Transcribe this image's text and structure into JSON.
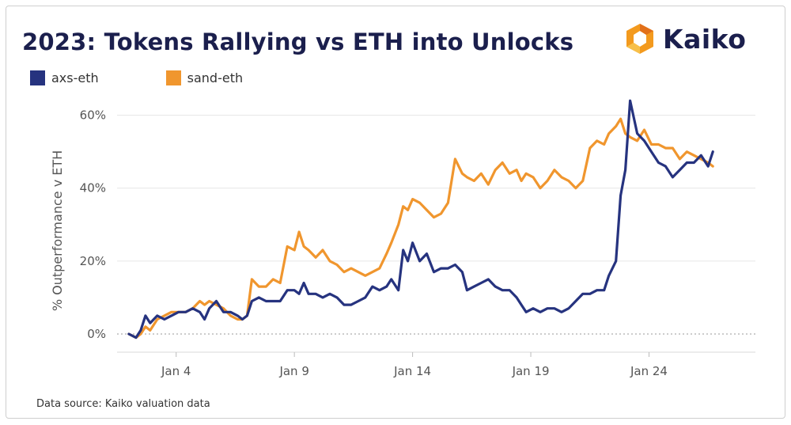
{
  "title": "2023: Tokens Rallying vs ETH into Unlocks",
  "brand": {
    "name": "Kaiko",
    "logo_icon": "kaiko-hexagon-logo"
  },
  "source_note": "Data source: Kaiko valuation data",
  "chart_data": {
    "type": "line",
    "title": "2023: Tokens Rallying vs ETH into Unlocks",
    "xlabel": "",
    "ylabel": "% Outperformance v ETH",
    "x_unit": "day of January 2023",
    "xlim": [
      1.5,
      28.5
    ],
    "ylim": [
      -5,
      66
    ],
    "y_ticks": [
      0,
      20,
      40,
      60
    ],
    "y_tick_labels": [
      "0%",
      "20%",
      "40%",
      "60%"
    ],
    "x_ticks": [
      4,
      9,
      14,
      19,
      24
    ],
    "x_tick_labels": [
      "Jan 4",
      "Jan 9",
      "Jan 14",
      "Jan 19",
      "Jan 24"
    ],
    "grid": true,
    "legend_position": "top-left",
    "series": [
      {
        "name": "axs-eth",
        "color": "#26337f",
        "points": [
          [
            2.0,
            0
          ],
          [
            2.3,
            -1
          ],
          [
            2.5,
            1
          ],
          [
            2.7,
            5
          ],
          [
            2.9,
            3
          ],
          [
            3.2,
            5
          ],
          [
            3.5,
            4
          ],
          [
            3.8,
            5
          ],
          [
            4.1,
            6
          ],
          [
            4.4,
            6
          ],
          [
            4.7,
            7
          ],
          [
            5.0,
            6
          ],
          [
            5.2,
            4
          ],
          [
            5.4,
            7
          ],
          [
            5.7,
            9
          ],
          [
            6.0,
            6
          ],
          [
            6.3,
            6
          ],
          [
            6.6,
            5
          ],
          [
            6.8,
            4
          ],
          [
            7.0,
            5
          ],
          [
            7.2,
            9
          ],
          [
            7.5,
            10
          ],
          [
            7.8,
            9
          ],
          [
            8.1,
            9
          ],
          [
            8.4,
            9
          ],
          [
            8.7,
            12
          ],
          [
            9.0,
            12
          ],
          [
            9.2,
            11
          ],
          [
            9.4,
            14
          ],
          [
            9.6,
            11
          ],
          [
            9.9,
            11
          ],
          [
            10.2,
            10
          ],
          [
            10.5,
            11
          ],
          [
            10.8,
            10
          ],
          [
            11.1,
            8
          ],
          [
            11.4,
            8
          ],
          [
            11.7,
            9
          ],
          [
            12.0,
            10
          ],
          [
            12.3,
            13
          ],
          [
            12.6,
            12
          ],
          [
            12.9,
            13
          ],
          [
            13.1,
            15
          ],
          [
            13.4,
            12
          ],
          [
            13.6,
            23
          ],
          [
            13.8,
            20
          ],
          [
            14.0,
            25
          ],
          [
            14.3,
            20
          ],
          [
            14.6,
            22
          ],
          [
            14.9,
            17
          ],
          [
            15.2,
            18
          ],
          [
            15.5,
            18
          ],
          [
            15.8,
            19
          ],
          [
            16.1,
            17
          ],
          [
            16.3,
            12
          ],
          [
            16.6,
            13
          ],
          [
            16.9,
            14
          ],
          [
            17.2,
            15
          ],
          [
            17.5,
            13
          ],
          [
            17.8,
            12
          ],
          [
            18.1,
            12
          ],
          [
            18.4,
            10
          ],
          [
            18.6,
            8
          ],
          [
            18.8,
            6
          ],
          [
            19.1,
            7
          ],
          [
            19.4,
            6
          ],
          [
            19.7,
            7
          ],
          [
            20.0,
            7
          ],
          [
            20.3,
            6
          ],
          [
            20.6,
            7
          ],
          [
            20.9,
            9
          ],
          [
            21.2,
            11
          ],
          [
            21.5,
            11
          ],
          [
            21.8,
            12
          ],
          [
            22.1,
            12
          ],
          [
            22.3,
            16
          ],
          [
            22.6,
            20
          ],
          [
            22.8,
            38
          ],
          [
            23.0,
            45
          ],
          [
            23.2,
            64
          ],
          [
            23.5,
            55
          ],
          [
            23.8,
            53
          ],
          [
            24.1,
            50
          ],
          [
            24.4,
            47
          ],
          [
            24.7,
            46
          ],
          [
            25.0,
            43
          ],
          [
            25.3,
            45
          ],
          [
            25.6,
            47
          ],
          [
            25.9,
            47
          ],
          [
            26.2,
            49
          ],
          [
            26.5,
            46
          ],
          [
            26.7,
            50
          ]
        ]
      },
      {
        "name": "sand-eth",
        "color": "#f0962e",
        "points": [
          [
            2.0,
            0
          ],
          [
            2.3,
            -1
          ],
          [
            2.5,
            0
          ],
          [
            2.7,
            2
          ],
          [
            2.9,
            1
          ],
          [
            3.2,
            4
          ],
          [
            3.5,
            5
          ],
          [
            3.8,
            6
          ],
          [
            4.1,
            6
          ],
          [
            4.4,
            6
          ],
          [
            4.7,
            7
          ],
          [
            5.0,
            9
          ],
          [
            5.2,
            8
          ],
          [
            5.4,
            9
          ],
          [
            5.7,
            8
          ],
          [
            6.0,
            7
          ],
          [
            6.3,
            5
          ],
          [
            6.6,
            4
          ],
          [
            6.8,
            4
          ],
          [
            7.0,
            5
          ],
          [
            7.2,
            15
          ],
          [
            7.5,
            13
          ],
          [
            7.8,
            13
          ],
          [
            8.1,
            15
          ],
          [
            8.4,
            14
          ],
          [
            8.7,
            24
          ],
          [
            9.0,
            23
          ],
          [
            9.2,
            28
          ],
          [
            9.4,
            24
          ],
          [
            9.6,
            23
          ],
          [
            9.9,
            21
          ],
          [
            10.2,
            23
          ],
          [
            10.5,
            20
          ],
          [
            10.8,
            19
          ],
          [
            11.1,
            17
          ],
          [
            11.4,
            18
          ],
          [
            11.7,
            17
          ],
          [
            12.0,
            16
          ],
          [
            12.3,
            17
          ],
          [
            12.6,
            18
          ],
          [
            12.9,
            22
          ],
          [
            13.1,
            25
          ],
          [
            13.4,
            30
          ],
          [
            13.6,
            35
          ],
          [
            13.8,
            34
          ],
          [
            14.0,
            37
          ],
          [
            14.3,
            36
          ],
          [
            14.6,
            34
          ],
          [
            14.9,
            32
          ],
          [
            15.2,
            33
          ],
          [
            15.5,
            36
          ],
          [
            15.8,
            48
          ],
          [
            16.1,
            44
          ],
          [
            16.3,
            43
          ],
          [
            16.6,
            42
          ],
          [
            16.9,
            44
          ],
          [
            17.2,
            41
          ],
          [
            17.5,
            45
          ],
          [
            17.8,
            47
          ],
          [
            18.1,
            44
          ],
          [
            18.4,
            45
          ],
          [
            18.6,
            42
          ],
          [
            18.8,
            44
          ],
          [
            19.1,
            43
          ],
          [
            19.4,
            40
          ],
          [
            19.7,
            42
          ],
          [
            20.0,
            45
          ],
          [
            20.3,
            43
          ],
          [
            20.6,
            42
          ],
          [
            20.9,
            40
          ],
          [
            21.2,
            42
          ],
          [
            21.5,
            51
          ],
          [
            21.8,
            53
          ],
          [
            22.1,
            52
          ],
          [
            22.3,
            55
          ],
          [
            22.6,
            57
          ],
          [
            22.8,
            59
          ],
          [
            23.0,
            55
          ],
          [
            23.2,
            54
          ],
          [
            23.5,
            53
          ],
          [
            23.8,
            56
          ],
          [
            24.1,
            52
          ],
          [
            24.4,
            52
          ],
          [
            24.7,
            51
          ],
          [
            25.0,
            51
          ],
          [
            25.3,
            48
          ],
          [
            25.6,
            50
          ],
          [
            25.9,
            49
          ],
          [
            26.2,
            48
          ],
          [
            26.5,
            47
          ],
          [
            26.7,
            46
          ]
        ]
      }
    ]
  }
}
